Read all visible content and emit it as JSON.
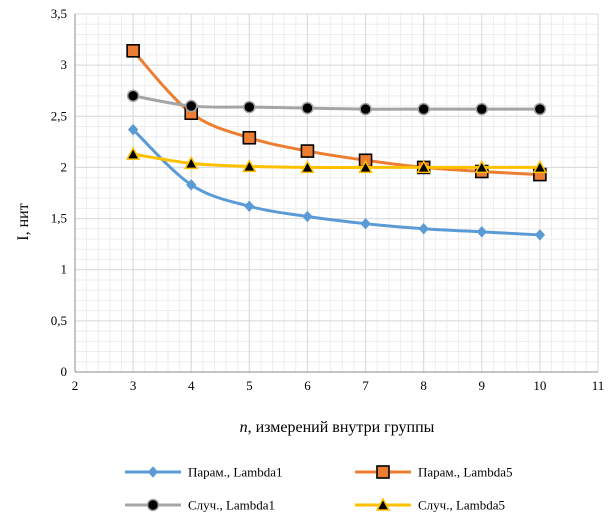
{
  "chart_data": {
    "type": "line",
    "title": "",
    "xlabel_italic": "n",
    "xlabel_rest": ", измерений внутри группы",
    "ylabel": "I, нит",
    "xlim": [
      2,
      11
    ],
    "ylim": [
      0,
      3.5
    ],
    "x_ticks": [
      2,
      3,
      4,
      5,
      6,
      7,
      8,
      9,
      10,
      11
    ],
    "x_tick_labels": [
      "2",
      "3",
      "4",
      "5",
      "6",
      "7",
      "8",
      "9",
      "10",
      "11"
    ],
    "y_ticks": [
      0,
      0.5,
      1,
      1.5,
      2,
      2.5,
      3,
      3.5
    ],
    "y_tick_labels": [
      "0",
      "0,5",
      "1",
      "1,5",
      "2",
      "2,5",
      "3",
      "3,5"
    ],
    "grid": "major and minor",
    "legend_position": "bottom",
    "x": [
      3,
      4,
      5,
      6,
      7,
      8,
      9,
      10
    ],
    "series": [
      {
        "name": "Парам., Lambda1",
        "color": "#5b9bd5",
        "marker": "diamond",
        "values": [
          2.37,
          1.83,
          1.62,
          1.52,
          1.45,
          1.4,
          1.37,
          1.34
        ]
      },
      {
        "name": "Парам., Lambda5",
        "color": "#ed7d31",
        "marker": "square",
        "values": [
          3.14,
          2.53,
          2.29,
          2.16,
          2.07,
          2.0,
          1.96,
          1.93
        ]
      },
      {
        "name": "Случ., Lambda1",
        "color": "#a5a5a5",
        "marker": "circle",
        "values": [
          2.7,
          2.6,
          2.59,
          2.58,
          2.57,
          2.57,
          2.57,
          2.57
        ]
      },
      {
        "name": "Случ., Lambda5",
        "color": "#ffc000",
        "marker": "triangle",
        "values": [
          2.13,
          2.04,
          2.01,
          2.0,
          2.0,
          2.0,
          2.0,
          2.0
        ]
      }
    ]
  }
}
